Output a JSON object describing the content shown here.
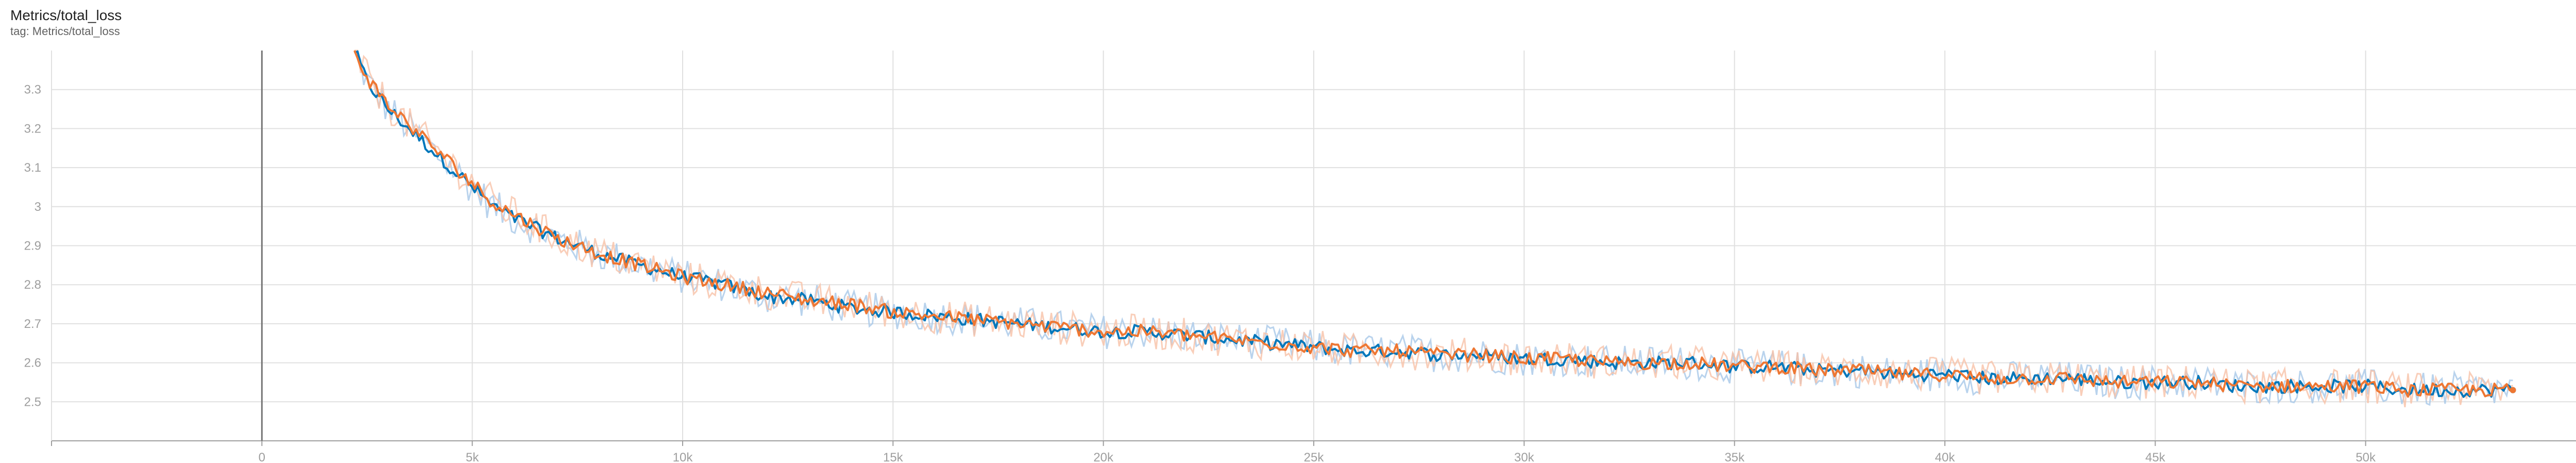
{
  "header": {
    "title": "Metrics/total_loss",
    "tag": "tag: Metrics/total_loss"
  },
  "colors": {
    "series_blue": "#0077bb",
    "series_orange": "#ee7733",
    "raw_blue": "#a8c8e8",
    "raw_orange": "#f7c2a7",
    "grid": "#e0e0e0",
    "axis": "#9e9e9e"
  },
  "chart_data": {
    "type": "line",
    "title": "Metrics/total_loss",
    "xlabel": "",
    "ylabel": "",
    "xlim": [
      -5000,
      55000
    ],
    "ylim": [
      2.4,
      3.4
    ],
    "x_ticks": [
      0,
      5000,
      10000,
      15000,
      20000,
      25000,
      30000,
      35000,
      40000,
      45000,
      50000
    ],
    "x_tick_labels": [
      "0",
      "5k",
      "10k",
      "15k",
      "20k",
      "25k",
      "30k",
      "35k",
      "40k",
      "45k",
      "50k"
    ],
    "y_ticks": [
      2.5,
      2.6,
      2.7,
      2.8,
      2.9,
      3.0,
      3.1,
      3.2,
      3.3
    ],
    "y_tick_labels": [
      "2.5",
      "2.6",
      "2.7",
      "2.8",
      "2.9",
      "3",
      "3.1",
      "3.2",
      "3.3"
    ],
    "grid": true,
    "series": [
      {
        "color": "#0077bb",
        "x": [
          2200,
          2500,
          3000,
          3500,
          4000,
          4500,
          5000,
          5500,
          6000,
          7000,
          8000,
          9000,
          10000,
          11000,
          12000,
          13000,
          14000,
          15000,
          16000,
          17000,
          18000,
          19000,
          20000,
          21000,
          22000,
          23000,
          24000,
          25000,
          26000,
          27000,
          28000,
          29000,
          30000,
          31000,
          32000,
          33000,
          34000,
          35000,
          36000,
          37000,
          38000,
          39000,
          40000,
          41000,
          42000,
          43000,
          44000,
          45000,
          46000,
          47000,
          48000,
          49000,
          50000,
          51000,
          52000,
          53000,
          53500
        ],
        "y": [
          3.4,
          3.32,
          3.25,
          3.2,
          3.15,
          3.1,
          3.05,
          3.0,
          2.97,
          2.92,
          2.88,
          2.85,
          2.82,
          2.8,
          2.77,
          2.76,
          2.74,
          2.73,
          2.72,
          2.71,
          2.7,
          2.69,
          2.68,
          2.68,
          2.67,
          2.66,
          2.65,
          2.64,
          2.63,
          2.63,
          2.62,
          2.62,
          2.61,
          2.61,
          2.6,
          2.6,
          2.6,
          2.59,
          2.59,
          2.58,
          2.58,
          2.57,
          2.57,
          2.56,
          2.56,
          2.56,
          2.55,
          2.55,
          2.55,
          2.54,
          2.54,
          2.54,
          2.54,
          2.53,
          2.53,
          2.53,
          2.53
        ]
      },
      {
        "color": "#ee7733",
        "x": [
          2200,
          2500,
          3000,
          3500,
          4000,
          4500,
          5000,
          5500,
          6000,
          7000,
          8000,
          9000,
          10000,
          11000,
          12000,
          13000,
          14000,
          15000,
          16000,
          17000,
          18000,
          19000,
          20000,
          21000,
          22000,
          23000,
          24000,
          25000,
          26000,
          27000,
          28000,
          29000,
          30000,
          31000,
          32000,
          33000,
          34000,
          35000,
          36000,
          37000,
          38000,
          39000,
          40000,
          41000,
          42000,
          43000,
          44000,
          45000,
          46000,
          47000,
          48000,
          49000,
          50000,
          51000,
          52000,
          53000,
          53500
        ],
        "y": [
          3.4,
          3.33,
          3.26,
          3.21,
          3.16,
          3.11,
          3.06,
          3.01,
          2.98,
          2.92,
          2.88,
          2.85,
          2.82,
          2.8,
          2.78,
          2.76,
          2.75,
          2.73,
          2.72,
          2.71,
          2.7,
          2.69,
          2.68,
          2.68,
          2.67,
          2.66,
          2.65,
          2.64,
          2.63,
          2.63,
          2.62,
          2.62,
          2.61,
          2.61,
          2.6,
          2.6,
          2.6,
          2.59,
          2.59,
          2.58,
          2.58,
          2.57,
          2.57,
          2.56,
          2.56,
          2.56,
          2.55,
          2.55,
          2.55,
          2.54,
          2.54,
          2.54,
          2.54,
          2.53,
          2.53,
          2.53,
          2.53
        ]
      }
    ]
  }
}
